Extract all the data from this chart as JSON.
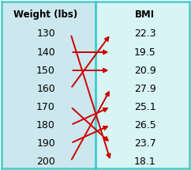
{
  "left_header": "Weight (lbs)",
  "right_header": "BMI",
  "left_values": [
    130,
    140,
    150,
    160,
    170,
    180,
    190,
    200
  ],
  "right_values": [
    22.3,
    19.5,
    20.9,
    27.9,
    25.1,
    26.5,
    23.7,
    18.1
  ],
  "arrows": [
    [
      0,
      7
    ],
    [
      1,
      1
    ],
    [
      2,
      2
    ],
    [
      3,
      0
    ],
    [
      4,
      6
    ],
    [
      5,
      4
    ],
    [
      6,
      5
    ],
    [
      7,
      3
    ]
  ],
  "left_bg": "#cce8ee",
  "right_bg": "#d8f4f4",
  "border_color": "#44cccc",
  "arrow_color": "#cc0000",
  "header_color": "#000000",
  "value_color": "#000000",
  "fig_width": 2.42,
  "fig_height": 2.15,
  "dpi": 100
}
